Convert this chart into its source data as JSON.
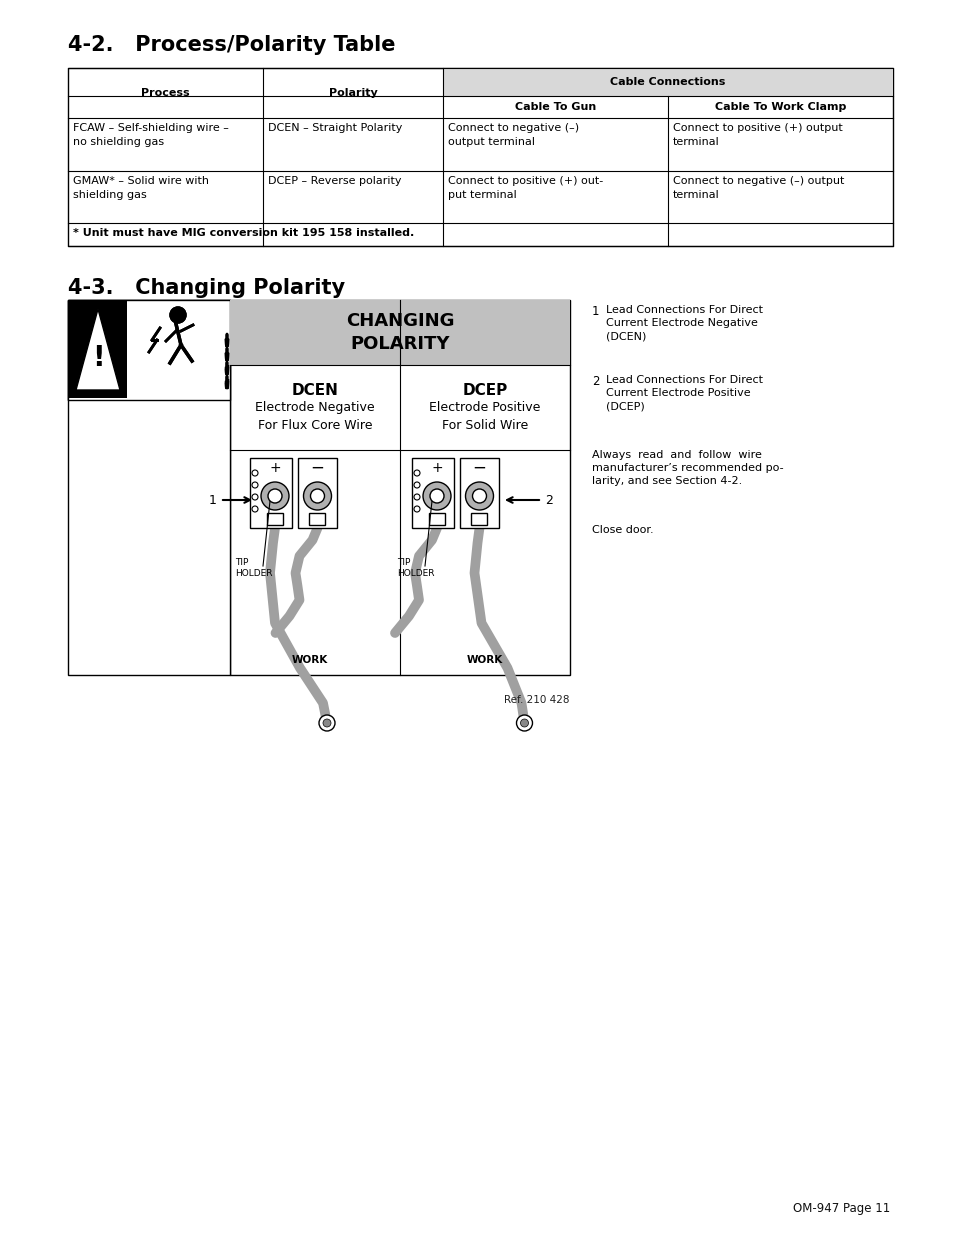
{
  "title_42": "4-2.   Process/Polarity Table",
  "title_43": "4-3.   Changing Polarity",
  "changing_polarity_title": "CHANGING\nPOLARITY",
  "dcen_title": "DCEN",
  "dcen_sub": "Electrode Negative\nFor Flux Core Wire",
  "dcep_title": "DCEP",
  "dcep_sub": "Electrode Positive\nFor Solid Wire",
  "tip_holder": "TIP\nHOLDER",
  "work": "WORK",
  "note1_num": "1",
  "note1_text": "Lead Connections For Direct\nCurrent Electrode Negative\n(DCEN)",
  "note2_num": "2",
  "note2_text": "Lead Connections For Direct\nCurrent Electrode Positive\n(DCEP)",
  "note3_text": "Always  read  and  follow  wire\nmanufacturer’s recommended po-\nlarity, and see Section 4-2.",
  "note4_text": "Close door.",
  "ref_text": "Ref. 210 428",
  "page_text": "OM-947 Page 11",
  "bg_color": "#ffffff"
}
